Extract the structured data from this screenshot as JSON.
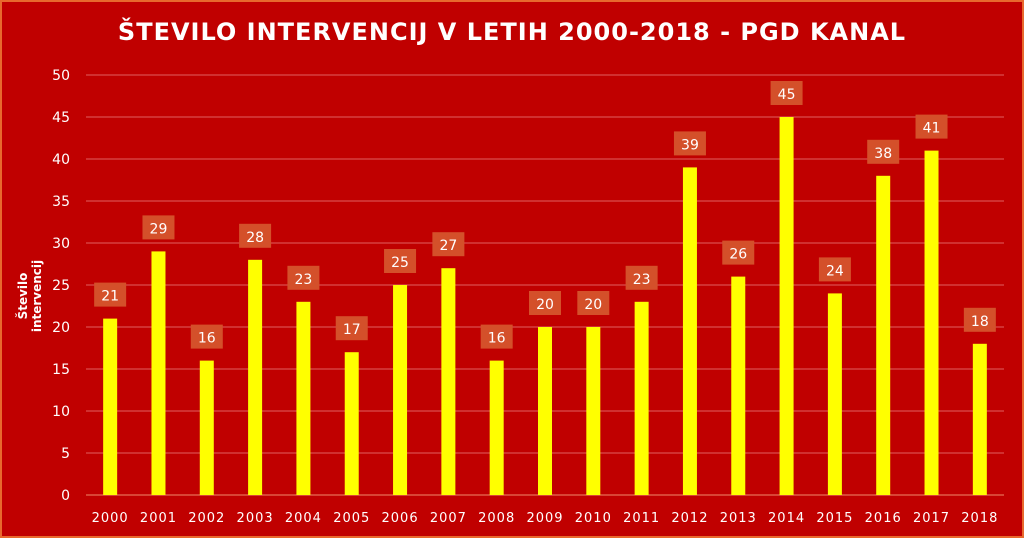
{
  "chart_data": {
    "type": "bar",
    "title": "ŠTEVILO INTERVENCIJ V LETIH 2000-2018 - PGD KANAL",
    "xlabel": "",
    "ylabel": "Število intervencij",
    "ylim": [
      0,
      50
    ],
    "yticks": [
      0,
      5,
      10,
      15,
      20,
      25,
      30,
      35,
      40,
      45,
      50
    ],
    "grid": true,
    "categories": [
      "2000",
      "2001",
      "2002",
      "2003",
      "2004",
      "2005",
      "2006",
      "2007",
      "2008",
      "2009",
      "2010",
      "2011",
      "2012",
      "2013",
      "2014",
      "2015",
      "2016",
      "2017",
      "2018"
    ],
    "values": [
      21,
      29,
      16,
      28,
      23,
      17,
      25,
      27,
      16,
      20,
      20,
      23,
      39,
      26,
      45,
      24,
      38,
      41,
      18
    ],
    "colors": {
      "background": "#c00000",
      "bar": "#ffff00",
      "label_box": "#d4502a",
      "grid": "#e06060",
      "text": "#ffffff",
      "border": "#e8692d"
    }
  }
}
